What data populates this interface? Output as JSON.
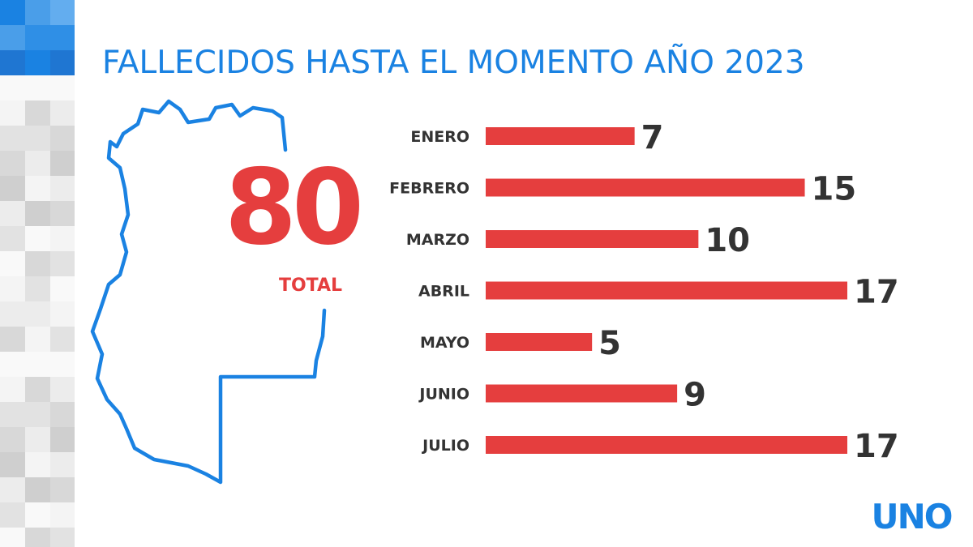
{
  "header": {
    "title": "FALLECIDOS HASTA EL MOMENTO AÑO 2023"
  },
  "summary": {
    "total_value": "80",
    "total_label": "TOTAL"
  },
  "colors": {
    "accent_blue": "#1a82e2",
    "bar_red": "#e53e3e",
    "text_dark": "#333333"
  },
  "chart_data": {
    "type": "bar",
    "orientation": "horizontal",
    "title": "FALLECIDOS HASTA EL MOMENTO AÑO 2023",
    "categories": [
      "ENERO",
      "FEBRERO",
      "MARZO",
      "ABRIL",
      "MAYO",
      "JUNIO",
      "JULIO"
    ],
    "values": [
      7,
      15,
      10,
      17,
      5,
      9,
      17
    ],
    "xlim": [
      0,
      17
    ],
    "grid": false,
    "data_labels": true
  },
  "logo": {
    "text": "UNO"
  }
}
